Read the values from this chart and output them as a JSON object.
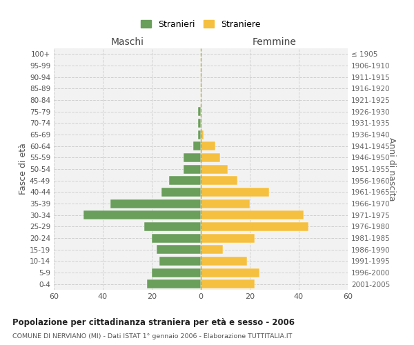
{
  "age_groups": [
    "0-4",
    "5-9",
    "10-14",
    "15-19",
    "20-24",
    "25-29",
    "30-34",
    "35-39",
    "40-44",
    "45-49",
    "50-54",
    "55-59",
    "60-64",
    "65-69",
    "70-74",
    "75-79",
    "80-84",
    "85-89",
    "90-94",
    "95-99",
    "100+"
  ],
  "birth_years": [
    "2001-2005",
    "1996-2000",
    "1991-1995",
    "1986-1990",
    "1981-1985",
    "1976-1980",
    "1971-1975",
    "1966-1970",
    "1961-1965",
    "1956-1960",
    "1951-1955",
    "1946-1950",
    "1941-1945",
    "1936-1940",
    "1931-1935",
    "1926-1930",
    "1921-1925",
    "1916-1920",
    "1911-1915",
    "1906-1910",
    "≤ 1905"
  ],
  "males": [
    22,
    20,
    17,
    18,
    20,
    23,
    48,
    37,
    16,
    13,
    7,
    7,
    3,
    1,
    1,
    1,
    0,
    0,
    0,
    0,
    0
  ],
  "females": [
    22,
    24,
    19,
    9,
    22,
    44,
    42,
    20,
    28,
    15,
    11,
    8,
    6,
    1,
    0,
    0,
    0,
    0,
    0,
    0,
    0
  ],
  "male_color": "#6a9e5b",
  "female_color": "#f5c040",
  "background_color": "#f2f2f2",
  "grid_color": "#cccccc",
  "title": "Popolazione per cittadinanza straniera per età e sesso - 2006",
  "subtitle": "COMUNE DI NERVIANO (MI) - Dati ISTAT 1° gennaio 2006 - Elaborazione TUTTITALIA.IT",
  "ylabel_left": "Fasce di età",
  "ylabel_right": "Anni di nascita",
  "xlabel_left": "Maschi",
  "xlabel_right": "Femmine",
  "legend_males": "Stranieri",
  "legend_females": "Straniere",
  "xlim": 60
}
